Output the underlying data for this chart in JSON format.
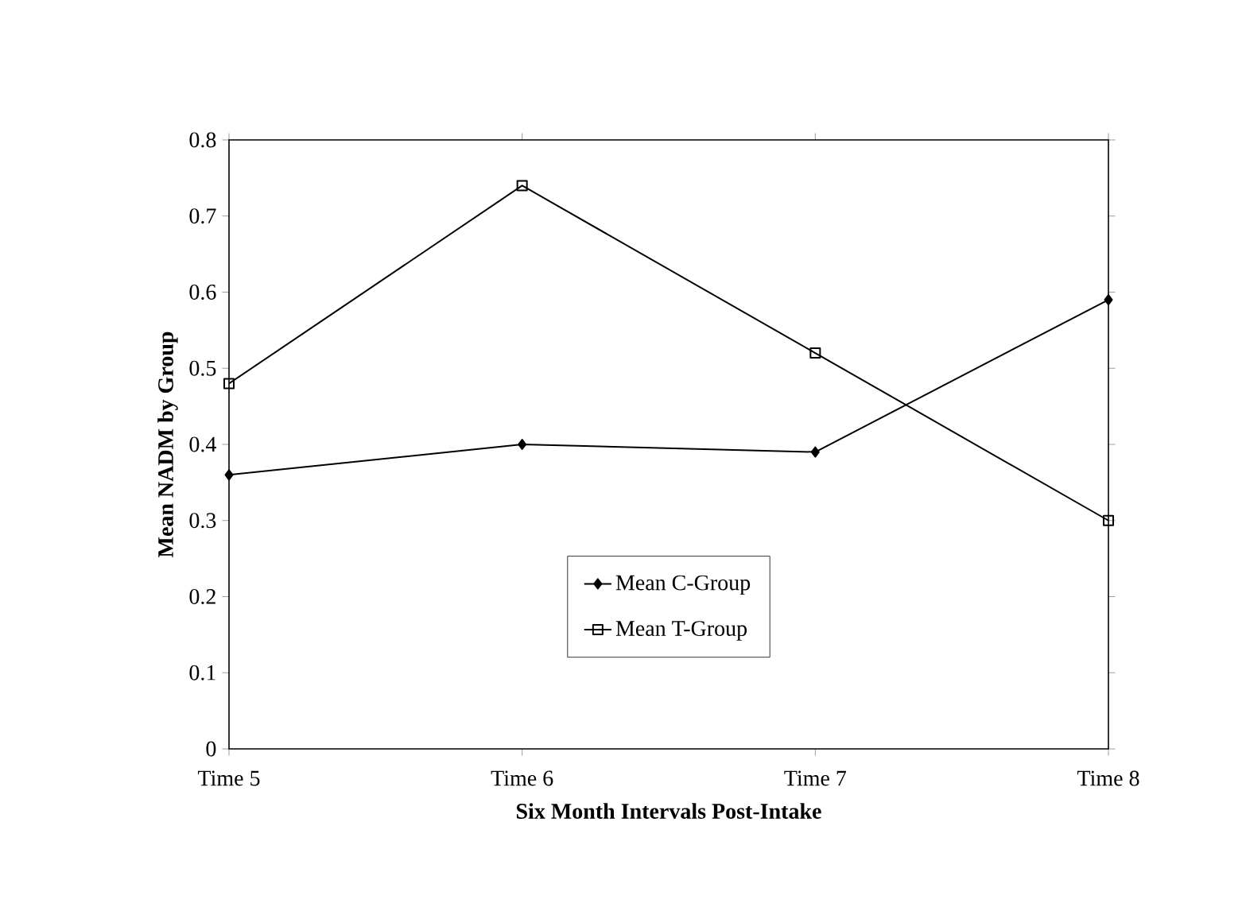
{
  "chart_data": {
    "type": "line",
    "xlabel": "Six Month Intervals  Post-Intake",
    "ylabel": "Mean NADM by Group",
    "categories": [
      "Time 5",
      "Time 6",
      "Time 7",
      "Time 8"
    ],
    "series": [
      {
        "name": "Mean C-Group",
        "color": "#000000",
        "marker": "diamond",
        "values": [
          0.36,
          0.4,
          0.39,
          0.59
        ]
      },
      {
        "name": "Mean T-Group",
        "color": "#000000",
        "marker": "square",
        "values": [
          0.48,
          0.74,
          0.52,
          0.3
        ]
      }
    ],
    "ylim": [
      0,
      0.8
    ],
    "yticks": [
      0,
      0.1,
      0.2,
      0.3,
      0.4,
      0.5,
      0.6,
      0.7,
      0.8
    ],
    "grid": false,
    "legend": "bottom",
    "line_style": "solid"
  }
}
